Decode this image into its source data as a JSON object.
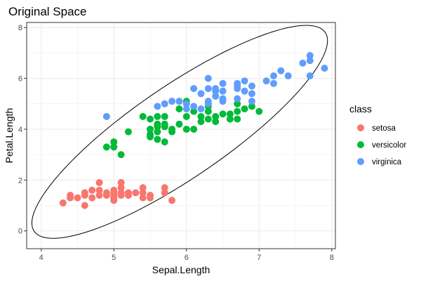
{
  "chart_data": {
    "type": "scatter",
    "title": "Original Space",
    "xlabel": "Sepal.Length",
    "ylabel": "Petal.Length",
    "xlim": [
      3.8,
      8.05
    ],
    "ylim": [
      -0.7,
      8.2
    ],
    "xticks": [
      4,
      5,
      6,
      7,
      8
    ],
    "yticks": [
      0,
      2,
      4,
      6,
      8
    ],
    "grid": true,
    "legend": {
      "title": "class",
      "position": "right"
    },
    "series": [
      {
        "name": "setosa",
        "color": "#F8766D",
        "points": [
          [
            4.3,
            1.1
          ],
          [
            4.4,
            1.3
          ],
          [
            4.4,
            1.4
          ],
          [
            4.5,
            1.3
          ],
          [
            4.6,
            1.0
          ],
          [
            4.6,
            1.4
          ],
          [
            4.6,
            1.5
          ],
          [
            4.7,
            1.3
          ],
          [
            4.7,
            1.6
          ],
          [
            4.8,
            1.4
          ],
          [
            4.8,
            1.6
          ],
          [
            4.8,
            1.9
          ],
          [
            4.9,
            1.4
          ],
          [
            4.9,
            1.5
          ],
          [
            5.0,
            1.2
          ],
          [
            5.0,
            1.3
          ],
          [
            5.0,
            1.4
          ],
          [
            5.0,
            1.5
          ],
          [
            5.0,
            1.6
          ],
          [
            5.1,
            1.4
          ],
          [
            5.1,
            1.5
          ],
          [
            5.1,
            1.7
          ],
          [
            5.1,
            1.9
          ],
          [
            5.2,
            1.4
          ],
          [
            5.2,
            1.5
          ],
          [
            5.3,
            1.5
          ],
          [
            5.4,
            1.3
          ],
          [
            5.4,
            1.5
          ],
          [
            5.4,
            1.7
          ],
          [
            5.5,
            1.3
          ],
          [
            5.5,
            1.4
          ],
          [
            5.7,
            1.5
          ],
          [
            5.7,
            1.7
          ],
          [
            5.8,
            1.2
          ]
        ]
      },
      {
        "name": "versicolor",
        "color": "#00BA38",
        "points": [
          [
            4.9,
            3.3
          ],
          [
            5.0,
            3.3
          ],
          [
            5.0,
            3.5
          ],
          [
            5.1,
            3.0
          ],
          [
            5.2,
            3.9
          ],
          [
            5.4,
            4.5
          ],
          [
            5.5,
            3.7
          ],
          [
            5.5,
            3.8
          ],
          [
            5.5,
            4.0
          ],
          [
            5.5,
            4.4
          ],
          [
            5.6,
            3.6
          ],
          [
            5.6,
            3.9
          ],
          [
            5.6,
            4.1
          ],
          [
            5.6,
            4.2
          ],
          [
            5.6,
            4.5
          ],
          [
            5.7,
            3.5
          ],
          [
            5.7,
            4.1
          ],
          [
            5.7,
            4.2
          ],
          [
            5.7,
            4.5
          ],
          [
            5.8,
            3.9
          ],
          [
            5.8,
            4.0
          ],
          [
            5.9,
            4.2
          ],
          [
            5.9,
            4.8
          ],
          [
            6.0,
            4.0
          ],
          [
            6.0,
            4.5
          ],
          [
            6.0,
            5.1
          ],
          [
            6.1,
            4.0
          ],
          [
            6.1,
            4.7
          ],
          [
            6.2,
            4.3
          ],
          [
            6.2,
            4.5
          ],
          [
            6.3,
            4.4
          ],
          [
            6.3,
            4.7
          ],
          [
            6.3,
            4.9
          ],
          [
            6.4,
            4.3
          ],
          [
            6.4,
            4.5
          ],
          [
            6.5,
            4.6
          ],
          [
            6.6,
            4.4
          ],
          [
            6.6,
            4.6
          ],
          [
            6.7,
            4.4
          ],
          [
            6.7,
            4.7
          ],
          [
            6.7,
            5.0
          ],
          [
            6.8,
            4.8
          ],
          [
            6.9,
            4.9
          ],
          [
            7.0,
            4.7
          ]
        ]
      },
      {
        "name": "virginica",
        "color": "#619CFF",
        "points": [
          [
            4.9,
            4.5
          ],
          [
            5.6,
            4.9
          ],
          [
            5.7,
            5.0
          ],
          [
            5.8,
            5.1
          ],
          [
            5.9,
            5.1
          ],
          [
            6.0,
            4.8
          ],
          [
            6.0,
            5.0
          ],
          [
            6.1,
            4.9
          ],
          [
            6.1,
            5.6
          ],
          [
            6.2,
            4.8
          ],
          [
            6.2,
            5.4
          ],
          [
            6.3,
            5.0
          ],
          [
            6.3,
            5.1
          ],
          [
            6.3,
            5.6
          ],
          [
            6.3,
            6.0
          ],
          [
            6.4,
            5.3
          ],
          [
            6.4,
            5.5
          ],
          [
            6.4,
            5.6
          ],
          [
            6.5,
            5.1
          ],
          [
            6.5,
            5.2
          ],
          [
            6.5,
            5.5
          ],
          [
            6.5,
            5.8
          ],
          [
            6.7,
            5.2
          ],
          [
            6.7,
            5.6
          ],
          [
            6.7,
            5.7
          ],
          [
            6.7,
            5.8
          ],
          [
            6.8,
            5.5
          ],
          [
            6.8,
            5.9
          ],
          [
            6.9,
            5.1
          ],
          [
            6.9,
            5.4
          ],
          [
            6.9,
            5.7
          ],
          [
            7.1,
            5.9
          ],
          [
            7.2,
            5.8
          ],
          [
            7.2,
            6.1
          ],
          [
            7.3,
            6.3
          ],
          [
            7.4,
            6.1
          ],
          [
            7.6,
            6.6
          ],
          [
            7.7,
            6.1
          ],
          [
            7.7,
            6.7
          ],
          [
            7.7,
            6.9
          ],
          [
            7.9,
            6.4
          ]
        ]
      }
    ]
  }
}
